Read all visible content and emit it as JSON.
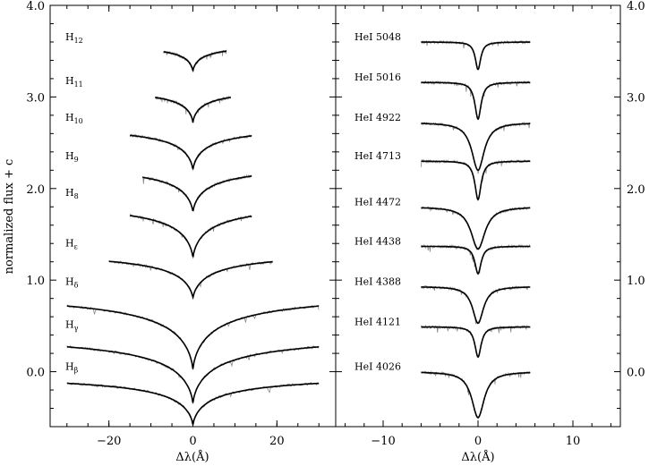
{
  "chart_data": {
    "type": "line",
    "ylabel": "normalized flux + c",
    "ylim": [
      -0.6,
      4.0
    ],
    "yticks": [
      "0.0",
      "1.0",
      "2.0",
      "3.0",
      "4.0"
    ],
    "panels": [
      {
        "name": "hydrogen",
        "xlabel": "Δλ(Å)",
        "xlim": [
          -34,
          34
        ],
        "xticks": [
          "−20",
          "0",
          "20"
        ],
        "series": [
          {
            "label": "H",
            "sub": "12",
            "offset": 3.6,
            "xmin": -7,
            "xmax": 8,
            "depth": 0.32,
            "width": 3.5
          },
          {
            "label": "H",
            "sub": "11",
            "offset": 3.12,
            "xmin": -9,
            "xmax": 9,
            "depth": 0.4,
            "width": 4.0
          },
          {
            "label": "H",
            "sub": "10",
            "offset": 2.72,
            "xmin": -15,
            "xmax": 14,
            "depth": 0.52,
            "width": 5.0
          },
          {
            "label": "H",
            "sub": "9",
            "offset": 2.3,
            "xmin": -12,
            "xmax": 14,
            "depth": 0.56,
            "width": 5.5
          },
          {
            "label": "H",
            "sub": "8",
            "offset": 1.9,
            "xmin": -15,
            "xmax": 14,
            "depth": 0.66,
            "width": 6.0
          },
          {
            "label": "H",
            "sub": "ε",
            "offset": 1.35,
            "xmin": -20,
            "xmax": 19,
            "depth": 0.55,
            "width": 6.5
          },
          {
            "label": "H",
            "sub": "δ",
            "offset": 0.93,
            "xmin": -30,
            "xmax": 30,
            "depth": 0.9,
            "width": 8.0
          },
          {
            "label": "H",
            "sub": "γ",
            "offset": 0.46,
            "xmin": -30,
            "xmax": 30,
            "depth": 0.8,
            "width": 8.0
          },
          {
            "label": "H",
            "sub": "β",
            "offset": 0.0,
            "xmin": -30,
            "xmax": 30,
            "depth": 0.58,
            "width": 7.0
          }
        ]
      },
      {
        "name": "helium",
        "xlabel": "Δλ(Å)",
        "xlim": [
          -15,
          15
        ],
        "xticks": [
          "−10",
          "0",
          "10"
        ],
        "series": [
          {
            "label": "HeI 5048",
            "offset": 3.6,
            "xmin": -6,
            "xmax": 5.5,
            "depth": 0.3,
            "width": 0.35
          },
          {
            "label": "HeI 5016",
            "offset": 3.16,
            "xmin": -6,
            "xmax": 5.5,
            "depth": 0.4,
            "width": 0.4
          },
          {
            "label": "HeI 4922",
            "offset": 2.72,
            "xmin": -6,
            "xmax": 5.5,
            "depth": 0.52,
            "width": 0.8
          },
          {
            "label": "HeI 4713",
            "offset": 2.3,
            "xmin": -6,
            "xmax": 5.5,
            "depth": 0.42,
            "width": 0.4
          },
          {
            "label": "HeI 4472",
            "offset": 1.8,
            "xmin": -6,
            "xmax": 5.5,
            "depth": 0.46,
            "width": 0.9
          },
          {
            "label": "HeI 4438",
            "offset": 1.37,
            "xmin": -6,
            "xmax": 5.5,
            "depth": 0.3,
            "width": 0.4
          },
          {
            "label": "HeI 4388",
            "offset": 0.93,
            "xmin": -6,
            "xmax": 5.5,
            "depth": 0.4,
            "width": 0.7
          },
          {
            "label": "HeI 4121",
            "offset": 0.49,
            "xmin": -6,
            "xmax": 5.5,
            "depth": 0.33,
            "width": 0.4
          },
          {
            "label": "HeI 4026",
            "offset": 0.0,
            "xmin": -6,
            "xmax": 5.5,
            "depth": 0.5,
            "width": 0.8
          }
        ]
      }
    ]
  }
}
